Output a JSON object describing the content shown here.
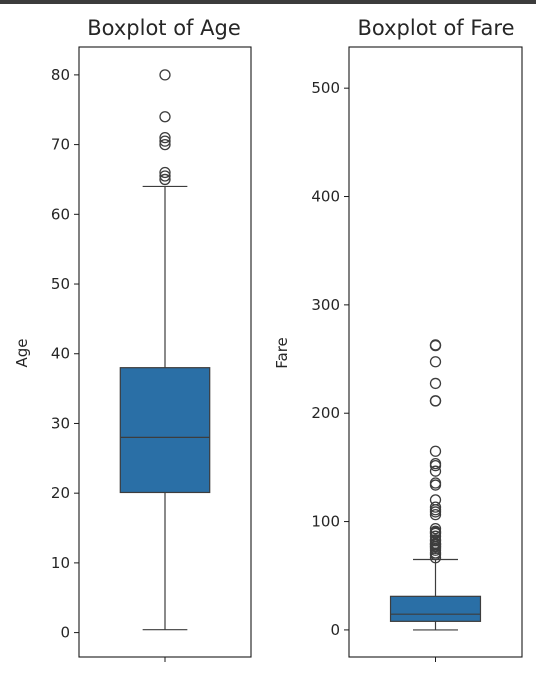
{
  "chart_data": [
    {
      "type": "boxplot",
      "title": "Boxplot of Age",
      "xlabel": "",
      "ylabel": "Age",
      "ylim": [
        -3.5,
        84
      ],
      "yticks": [
        0,
        10,
        20,
        30,
        40,
        50,
        60,
        70,
        80
      ],
      "grid": false,
      "color": "#2a6fa6",
      "box": {
        "whisker_low": 0.42,
        "q1": 20.1,
        "median": 28,
        "q3": 38,
        "whisker_high": 64
      },
      "outliers": [
        65,
        65.5,
        66,
        70,
        70.5,
        71,
        74,
        80
      ]
    },
    {
      "type": "boxplot",
      "title": "Boxplot of Fare",
      "xlabel": "",
      "ylabel": "Fare",
      "ylim": [
        -25,
        538
      ],
      "yticks": [
        0,
        100,
        200,
        300,
        400,
        500
      ],
      "grid": false,
      "color": "#2a6fa6",
      "box": {
        "whisker_low": 0,
        "q1": 7.9,
        "median": 14.5,
        "q3": 31,
        "whisker_high": 65
      },
      "outliers": [
        66.6,
        69.5,
        71,
        73.5,
        75.2,
        76.7,
        77.3,
        78.9,
        79.2,
        80,
        82.2,
        83.2,
        86.5,
        89.1,
        90,
        91,
        93.5,
        106.4,
        108.9,
        110.9,
        113.3,
        120,
        133.7,
        135.6,
        146.5,
        151.6,
        153.5,
        164.9,
        211.3,
        211.5,
        227.5,
        247.5,
        262.4,
        263
      ]
    }
  ]
}
